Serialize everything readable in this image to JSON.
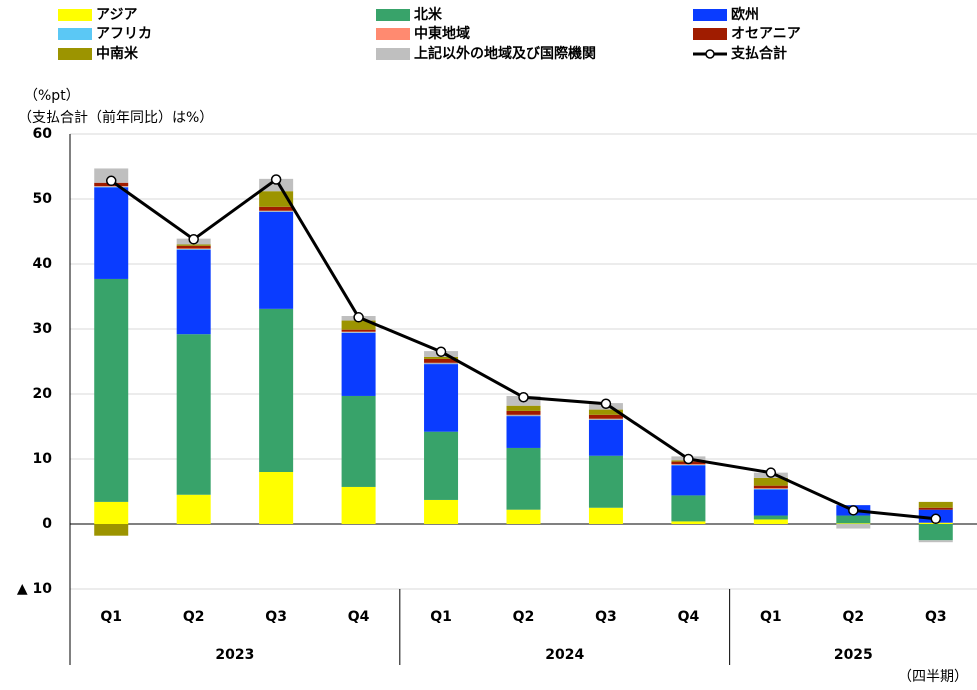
{
  "chart_data": {
    "type": "stacked_bar_line",
    "y_label_1": "（%pt）",
    "y_label_2": "（支払合計（前年同比）は%）",
    "x_label": "（四半期）",
    "categories": [
      "Q1",
      "Q2",
      "Q3",
      "Q4",
      "Q1",
      "Q2",
      "Q3",
      "Q4",
      "Q1",
      "Q2",
      "Q3"
    ],
    "category_groups": [
      "2023",
      "2023",
      "2023",
      "2023",
      "2024",
      "2024",
      "2024",
      "2024",
      "2025",
      "2025",
      "2025"
    ],
    "ylim": [
      -10,
      60
    ],
    "yticks": [
      {
        "value": -10,
        "label": "▲ 10"
      },
      0,
      10,
      20,
      30,
      40,
      50,
      60
    ],
    "grid": true,
    "series": [
      {
        "name": "アジア",
        "color": "#ffff00",
        "values": [
          3.4,
          4.5,
          8.0,
          5.7,
          3.7,
          2.2,
          2.5,
          0.4,
          0.7,
          0.1,
          0.2
        ]
      },
      {
        "name": "北米",
        "color": "#38a36a",
        "values": [
          34.3,
          24.7,
          25.1,
          14.0,
          10.5,
          9.5,
          8.0,
          4.0,
          0.6,
          1.2,
          -2.5
        ]
      },
      {
        "name": "欧州",
        "color": "#0a3cff",
        "values": [
          14.1,
          13.0,
          14.9,
          9.7,
          10.4,
          4.9,
          5.5,
          4.6,
          4.0,
          1.6,
          2.0
        ]
      },
      {
        "name": "アフリカ",
        "color": "#5bc8f5",
        "values": [
          0.1,
          0.1,
          0.1,
          0.1,
          0.1,
          0.1,
          0.1,
          0.1,
          0.1,
          0,
          0
        ]
      },
      {
        "name": "中東地域",
        "color": "#ff8a70",
        "values": [
          0.1,
          0.1,
          0.1,
          0.1,
          0.1,
          0.1,
          0.1,
          0.1,
          0.1,
          0,
          0
        ]
      },
      {
        "name": "オセアニア",
        "color": "#a01c00",
        "values": [
          0.5,
          0.4,
          0.6,
          0.3,
          0.6,
          0.6,
          0.6,
          0.4,
          0.4,
          0,
          0.3
        ]
      },
      {
        "name": "中南米",
        "color": "#9c9400",
        "values": [
          -1.8,
          0.2,
          2.4,
          1.4,
          0.3,
          0.8,
          0.8,
          0.2,
          1.2,
          0,
          0.9
        ]
      },
      {
        "name": "上記以外の地域及び国際機関",
        "color": "#bfbfbf",
        "values": [
          2.2,
          0.9,
          1.9,
          0.7,
          0.9,
          1.5,
          1.0,
          0.6,
          0.8,
          -0.7,
          -0.3
        ]
      }
    ],
    "line": {
      "name": "支払合計",
      "color": "#000000",
      "values": [
        52.8,
        43.8,
        53.0,
        31.8,
        26.5,
        19.5,
        18.5,
        10.0,
        7.9,
        2.1,
        0.8
      ]
    }
  }
}
